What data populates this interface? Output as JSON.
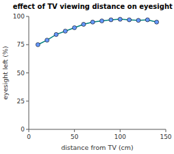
{
  "chart_data": {
    "type": "line",
    "title": "effect of TV viewing distance on eyesight",
    "xlabel": "distance from TV (cm)",
    "ylabel": "eyesight left (%)",
    "x": [
      10,
      20,
      30,
      40,
      50,
      60,
      70,
      80,
      90,
      100,
      110,
      120,
      130,
      140
    ],
    "values": [
      75,
      79,
      84,
      87,
      90,
      93,
      95,
      96,
      97,
      97.5,
      97,
      96.5,
      97,
      95
    ],
    "color": "#008080",
    "marker": "circle",
    "xlim": [
      0,
      150
    ],
    "ylim": [
      0,
      100
    ],
    "xticks": [
      0,
      50,
      100,
      150
    ],
    "yticks": [
      0,
      25,
      50,
      75,
      100
    ],
    "grid": false
  }
}
